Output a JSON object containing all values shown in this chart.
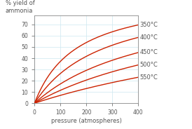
{
  "xlabel": "pressure (atmospheres)",
  "ylabel": "% yield of\nammonia",
  "xlim": [
    0,
    400
  ],
  "ylim": [
    0,
    78
  ],
  "xticks": [
    0,
    100,
    200,
    300,
    400
  ],
  "yticks": [
    0,
    10,
    20,
    30,
    40,
    50,
    60,
    70
  ],
  "curves": [
    {
      "temp": "350°C",
      "ymax": 98,
      "km": 163
    },
    {
      "temp": "400°C",
      "ymax": 98,
      "km": 270
    },
    {
      "temp": "450°C",
      "ymax": 98,
      "km": 470
    },
    {
      "temp": "500°C",
      "ymax": 98,
      "km": 752
    },
    {
      "temp": "550°C",
      "ymax": 98,
      "km": 1300
    }
  ],
  "line_color": "#cc2200",
  "bg_color": "#ffffff",
  "grid_color": "#cce8f0",
  "tick_label_color": "#555555",
  "axis_label_color": "#555555",
  "label_fontsize": 6.0,
  "tick_fontsize": 5.5,
  "annotation_fontsize": 6.0,
  "linewidth": 1.0
}
